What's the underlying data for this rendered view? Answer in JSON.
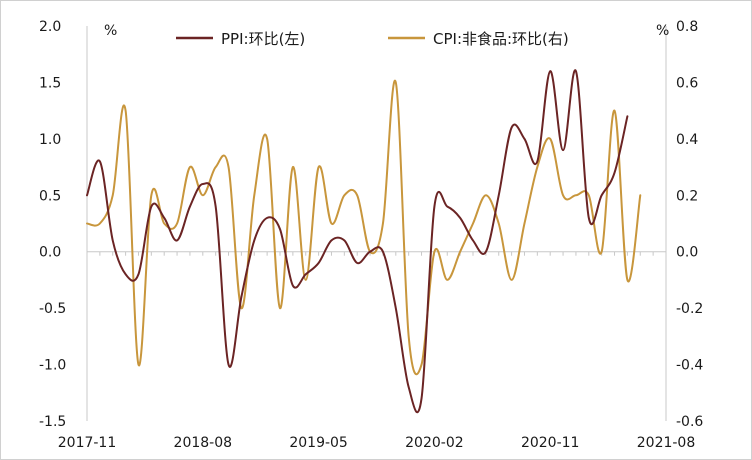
{
  "chart_data": {
    "type": "line",
    "x_tick_labels": [
      "2017-11",
      "2018-08",
      "2019-05",
      "2020-02",
      "2020-11",
      "2021-08"
    ],
    "y_left": {
      "unit": "%",
      "lim": [
        -1.5,
        2.0
      ],
      "ticks": [
        -1.5,
        -1.0,
        -0.5,
        0.0,
        0.5,
        1.0,
        1.5,
        2.0
      ],
      "tick_labels": [
        "-1.5",
        "-1.0",
        "-0.5",
        "0.0",
        "0.5",
        "1.0",
        "1.5",
        "2.0"
      ]
    },
    "y_right": {
      "unit": "%",
      "lim": [
        -0.6,
        0.8
      ],
      "ticks": [
        -0.6,
        -0.4,
        -0.2,
        0.0,
        0.2,
        0.4,
        0.6,
        0.8
      ],
      "tick_labels": [
        "-0.6",
        "-0.4",
        "-0.2",
        "0.0",
        "0.2",
        "0.4",
        "0.6",
        "0.8"
      ]
    },
    "x": [
      "2017-11",
      "2017-12",
      "2018-01",
      "2018-02",
      "2018-03",
      "2018-04",
      "2018-05",
      "2018-06",
      "2018-07",
      "2018-08",
      "2018-09",
      "2018-10",
      "2018-11",
      "2018-12",
      "2019-01",
      "2019-02",
      "2019-03",
      "2019-04",
      "2019-05",
      "2019-06",
      "2019-07",
      "2019-08",
      "2019-09",
      "2019-10",
      "2019-11",
      "2019-12",
      "2020-01",
      "2020-02",
      "2020-03",
      "2020-04",
      "2020-05",
      "2020-06",
      "2020-07",
      "2020-08",
      "2020-09",
      "2020-10",
      "2020-11",
      "2020-12",
      "2021-01",
      "2021-02",
      "2021-03",
      "2021-04",
      "2021-05",
      "2021-06",
      "2021-07",
      "2021-08"
    ],
    "series": [
      {
        "name": "PPI:环比(左)",
        "axis": "left",
        "color": "#6b2424",
        "values": [
          0.5,
          0.8,
          0.1,
          -0.2,
          -0.2,
          0.4,
          0.3,
          0.1,
          0.4,
          0.6,
          0.4,
          -1.0,
          -0.4,
          0.1,
          0.3,
          0.2,
          -0.3,
          -0.2,
          -0.1,
          0.1,
          0.1,
          -0.1,
          0.0,
          0.0,
          -0.5,
          -1.2,
          -1.3,
          0.4,
          0.4,
          0.3,
          0.1,
          0.0,
          0.5,
          1.1,
          1.0,
          0.8,
          1.6,
          0.9,
          1.6,
          0.3,
          0.5,
          0.7,
          1.2,
          null,
          null,
          null
        ]
      },
      {
        "name": "CPI:非食品:环比(右)",
        "axis": "right",
        "color": "#c8963c",
        "values": [
          0.1,
          0.1,
          0.2,
          0.5,
          -0.4,
          0.2,
          0.1,
          0.1,
          0.3,
          0.2,
          0.3,
          0.3,
          -0.2,
          0.2,
          0.4,
          -0.2,
          0.3,
          -0.1,
          0.3,
          0.1,
          0.2,
          0.2,
          0.0,
          0.1,
          0.6,
          -0.3,
          -0.4,
          0.0,
          -0.1,
          0.0,
          0.1,
          0.2,
          0.1,
          -0.1,
          0.1,
          0.3,
          0.4,
          0.2,
          0.2,
          0.2,
          0.0,
          0.5,
          -0.1,
          0.2,
          null,
          null
        ]
      }
    ],
    "legend_position": "top",
    "grid": false
  }
}
